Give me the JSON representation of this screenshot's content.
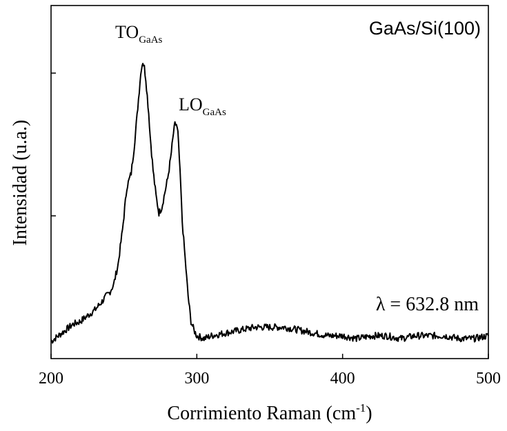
{
  "chart_data": {
    "type": "line",
    "title": "",
    "xlabel": "Corrimiento Raman (cm",
    "xlabel_sup": "-1",
    "xlabel_tail": ")",
    "ylabel": "Intensidad (u.a.)",
    "xlim": [
      200,
      500
    ],
    "ylim": [
      0,
      1.0
    ],
    "xticks": [
      200,
      300,
      400,
      500
    ],
    "xticklabels": [
      "200",
      "300",
      "400",
      "500"
    ],
    "yticks_unlabeled": [
      0.5,
      1.0
    ],
    "grid": false,
    "legend": "none",
    "line_color": "#000000",
    "annotations": {
      "sample": "GaAs/Si(100)",
      "wavelength": "λ = 632.8 nm",
      "peak1_main": "TO",
      "peak1_sub": "GaAs",
      "peak2_main": "LO",
      "peak2_sub": "GaAs"
    },
    "series": [
      {
        "x": [
          200,
          205,
          210,
          215,
          220,
          225,
          230,
          235,
          238,
          240,
          243,
          246,
          249,
          252,
          255,
          257,
          259,
          261,
          262,
          263,
          264,
          265,
          266,
          267,
          268,
          270,
          272,
          274,
          276,
          278,
          280,
          282,
          284,
          285,
          286,
          287,
          288,
          289,
          290,
          292,
          294,
          296,
          298,
          300,
          305,
          310,
          320,
          330,
          340,
          350,
          360,
          370,
          380,
          390,
          400,
          410,
          420,
          430,
          440,
          450,
          460,
          470,
          480,
          490,
          500
        ],
        "y": [
          0.06,
          0.08,
          0.1,
          0.12,
          0.13,
          0.15,
          0.17,
          0.2,
          0.22,
          0.23,
          0.26,
          0.33,
          0.45,
          0.6,
          0.65,
          0.74,
          0.85,
          0.97,
          1.02,
          1.04,
          1.02,
          0.98,
          0.92,
          0.86,
          0.78,
          0.66,
          0.57,
          0.51,
          0.53,
          0.58,
          0.63,
          0.7,
          0.79,
          0.82,
          0.82,
          0.79,
          0.7,
          0.6,
          0.48,
          0.35,
          0.22,
          0.13,
          0.1,
          0.08,
          0.07,
          0.08,
          0.09,
          0.1,
          0.11,
          0.11,
          0.11,
          0.1,
          0.09,
          0.08,
          0.08,
          0.07,
          0.08,
          0.08,
          0.07,
          0.08,
          0.08,
          0.08,
          0.07,
          0.07,
          0.08
        ]
      }
    ]
  }
}
